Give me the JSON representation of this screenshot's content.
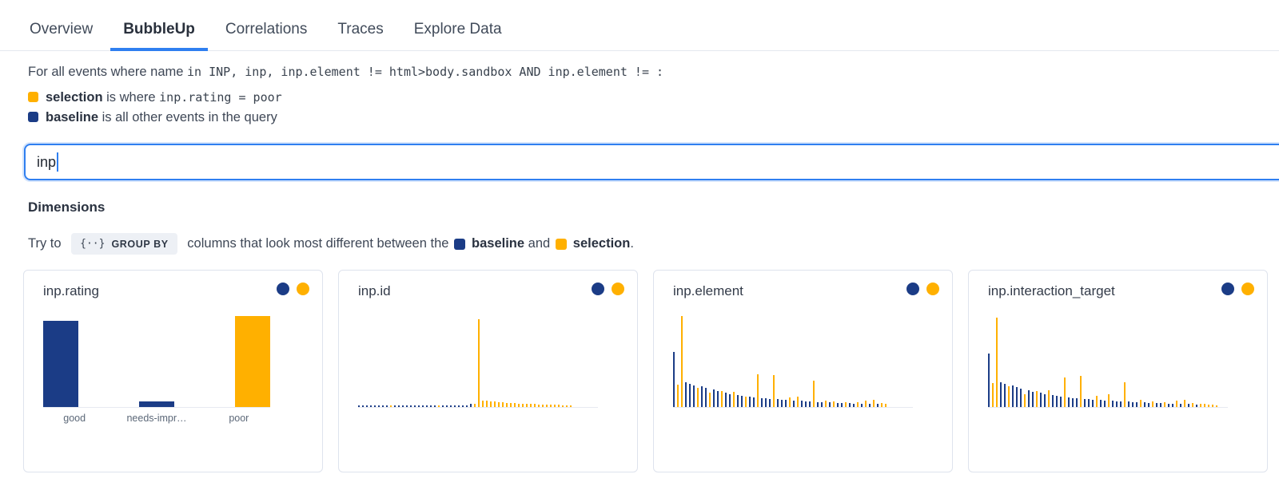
{
  "tabs": [
    {
      "label": "Overview",
      "active": false
    },
    {
      "label": "BubbleUp",
      "active": true
    },
    {
      "label": "Correlations",
      "active": false
    },
    {
      "label": "Traces",
      "active": false
    },
    {
      "label": "Explore Data",
      "active": false
    }
  ],
  "query": {
    "prefix_text": "For all events where name ",
    "mono_text": "in INP, inp, inp.element != html>body.sandbox AND inp.element != :",
    "selection_label": "selection",
    "selection_mid": " is where ",
    "selection_mono": "inp.rating = poor",
    "baseline_label": "baseline",
    "baseline_rest": " is all other events in the query"
  },
  "search": {
    "value": "inp"
  },
  "dimensions": {
    "heading": "Dimensions",
    "hint_prefix": "Try to ",
    "chip_icon": "{··}",
    "chip_label": "GROUP BY",
    "hint_mid": " columns that look most different between the ",
    "baseline_label": "baseline",
    "hint_and": " and ",
    "selection_label": "selection",
    "hint_period": "."
  },
  "colors": {
    "baseline_navy": "#1B3C86",
    "selection_orange": "#FFB000",
    "accent_blue": "#2F7FF0"
  },
  "chart_data": [
    {
      "type": "bar",
      "title": "inp.rating",
      "layout": "wide",
      "series_legend": {
        "b": "baseline",
        "o": "selection"
      },
      "categories": [
        "good",
        "needs-impr…",
        "poor"
      ],
      "bars": [
        [
          "b",
          108
        ],
        [
          "b",
          7
        ],
        [
          "o",
          114
        ]
      ]
    },
    {
      "type": "bar",
      "title": "inp.id",
      "layout": "thin",
      "series_legend": {
        "b": "baseline",
        "o": "selection"
      },
      "bars": [
        [
          "b",
          2
        ],
        [
          "b",
          2
        ],
        [
          "b",
          2
        ],
        [
          "b",
          2
        ],
        [
          "b",
          2
        ],
        [
          "b",
          2
        ],
        [
          "b",
          2
        ],
        [
          "b",
          2
        ],
        [
          "o",
          2
        ],
        [
          "b",
          2
        ],
        [
          "b",
          2
        ],
        [
          "b",
          2
        ],
        [
          "b",
          2
        ],
        [
          "b",
          2
        ],
        [
          "b",
          2
        ],
        [
          "b",
          2
        ],
        [
          "b",
          2
        ],
        [
          "b",
          2
        ],
        [
          "b",
          2
        ],
        [
          "b",
          2
        ],
        [
          "o",
          2
        ],
        [
          "b",
          2
        ],
        [
          "b",
          2
        ],
        [
          "b",
          2
        ],
        [
          "b",
          2
        ],
        [
          "b",
          2
        ],
        [
          "b",
          2
        ],
        [
          "b",
          2
        ],
        [
          "b",
          4
        ],
        [
          "o",
          4
        ],
        [
          "o",
          110
        ],
        [
          "o",
          8
        ],
        [
          "o",
          8
        ],
        [
          "o",
          7
        ],
        [
          "o",
          7
        ],
        [
          "o",
          6
        ],
        [
          "o",
          6
        ],
        [
          "o",
          5
        ],
        [
          "o",
          5
        ],
        [
          "o",
          5
        ],
        [
          "o",
          4
        ],
        [
          "o",
          4
        ],
        [
          "o",
          4
        ],
        [
          "o",
          4
        ],
        [
          "o",
          4
        ],
        [
          "o",
          3
        ],
        [
          "o",
          3
        ],
        [
          "o",
          3
        ],
        [
          "o",
          3
        ],
        [
          "o",
          3
        ],
        [
          "o",
          3
        ],
        [
          "o",
          2
        ],
        [
          "o",
          2
        ],
        [
          "o",
          2
        ]
      ]
    },
    {
      "type": "bar",
      "title": "inp.element",
      "layout": "thin",
      "series_legend": {
        "b": "baseline",
        "o": "selection"
      },
      "bars": [
        [
          "b",
          69
        ],
        [
          "o",
          28
        ],
        [
          "o",
          114
        ],
        [
          "b",
          31
        ],
        [
          "b",
          29
        ],
        [
          "b",
          27
        ],
        [
          "o",
          24
        ],
        [
          "b",
          26
        ],
        [
          "b",
          24
        ],
        [
          "o",
          18
        ],
        [
          "b",
          22
        ],
        [
          "b",
          20
        ],
        [
          "o",
          20
        ],
        [
          "b",
          18
        ],
        [
          "b",
          16
        ],
        [
          "o",
          19
        ],
        [
          "b",
          15
        ],
        [
          "b",
          14
        ],
        [
          "o",
          13
        ],
        [
          "b",
          13
        ],
        [
          "b",
          12
        ],
        [
          "o",
          41
        ],
        [
          "b",
          11
        ],
        [
          "b",
          11
        ],
        [
          "b",
          10
        ],
        [
          "o",
          40
        ],
        [
          "b",
          10
        ],
        [
          "b",
          9
        ],
        [
          "b",
          9
        ],
        [
          "o",
          12
        ],
        [
          "b",
          8
        ],
        [
          "o",
          13
        ],
        [
          "b",
          8
        ],
        [
          "b",
          7
        ],
        [
          "b",
          7
        ],
        [
          "o",
          33
        ],
        [
          "b",
          6
        ],
        [
          "b",
          6
        ],
        [
          "o",
          8
        ],
        [
          "b",
          6
        ],
        [
          "o",
          7
        ],
        [
          "b",
          5
        ],
        [
          "b",
          5
        ],
        [
          "o",
          6
        ],
        [
          "b",
          5
        ],
        [
          "b",
          4
        ],
        [
          "o",
          6
        ],
        [
          "b",
          4
        ],
        [
          "o",
          8
        ],
        [
          "b",
          4
        ],
        [
          "o",
          9
        ],
        [
          "b",
          4
        ],
        [
          "o",
          5
        ],
        [
          "o",
          4
        ]
      ]
    },
    {
      "type": "bar",
      "title": "inp.interaction_target",
      "layout": "thin",
      "series_legend": {
        "b": "baseline",
        "o": "selection"
      },
      "bars": [
        [
          "b",
          67
        ],
        [
          "o",
          30
        ],
        [
          "o",
          112
        ],
        [
          "b",
          31
        ],
        [
          "b",
          29
        ],
        [
          "o",
          26
        ],
        [
          "b",
          27
        ],
        [
          "b",
          25
        ],
        [
          "b",
          23
        ],
        [
          "o",
          16
        ],
        [
          "b",
          21
        ],
        [
          "b",
          19
        ],
        [
          "o",
          20
        ],
        [
          "b",
          18
        ],
        [
          "b",
          16
        ],
        [
          "o",
          21
        ],
        [
          "b",
          15
        ],
        [
          "b",
          14
        ],
        [
          "b",
          13
        ],
        [
          "o",
          37
        ],
        [
          "b",
          12
        ],
        [
          "b",
          11
        ],
        [
          "b",
          11
        ],
        [
          "o",
          39
        ],
        [
          "b",
          10
        ],
        [
          "b",
          10
        ],
        [
          "b",
          9
        ],
        [
          "o",
          14
        ],
        [
          "b",
          9
        ],
        [
          "b",
          8
        ],
        [
          "o",
          16
        ],
        [
          "b",
          8
        ],
        [
          "b",
          7
        ],
        [
          "b",
          7
        ],
        [
          "o",
          31
        ],
        [
          "b",
          7
        ],
        [
          "b",
          6
        ],
        [
          "b",
          6
        ],
        [
          "o",
          9
        ],
        [
          "b",
          6
        ],
        [
          "b",
          5
        ],
        [
          "o",
          7
        ],
        [
          "b",
          5
        ],
        [
          "b",
          5
        ],
        [
          "o",
          6
        ],
        [
          "b",
          4
        ],
        [
          "b",
          4
        ],
        [
          "o",
          8
        ],
        [
          "b",
          4
        ],
        [
          "o",
          9
        ],
        [
          "b",
          4
        ],
        [
          "o",
          5
        ],
        [
          "b",
          3
        ],
        [
          "o",
          4
        ],
        [
          "o",
          4
        ],
        [
          "o",
          3
        ],
        [
          "o",
          3
        ],
        [
          "o",
          2
        ]
      ]
    }
  ]
}
